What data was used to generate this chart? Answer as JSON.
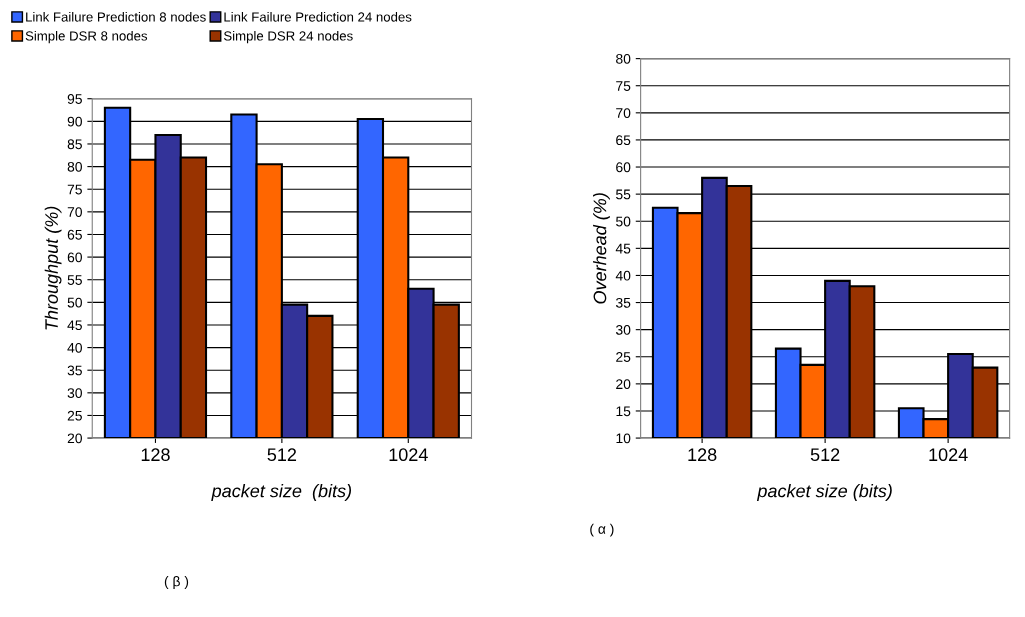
{
  "chart_data": [
    {
      "type": "bar",
      "categories": [
        "128",
        "512",
        "1024"
      ],
      "xlabel": "packet size  (bits)",
      "ylabel": "Throughput (%)",
      "ylim": [
        20,
        95
      ],
      "yticks": [
        20,
        25,
        30,
        35,
        40,
        45,
        50,
        55,
        60,
        65,
        70,
        75,
        80,
        85,
        90,
        95
      ],
      "grid": "y",
      "legend": "top left",
      "annotations": [
        "( β )"
      ],
      "series": [
        {
          "name": "Link Failure Prediction 8 nodes",
          "color": "#3366ff",
          "values": [
            93,
            91.5,
            90.5
          ]
        },
        {
          "name": "Simple DSR 8 nodes",
          "color": "#ff6600",
          "values": [
            81.5,
            80.5,
            82
          ]
        },
        {
          "name": "Link Failure Prediction 24 nodes",
          "color": "#333399",
          "values": [
            87,
            49.5,
            53
          ]
        },
        {
          "name": "Simple DSR 24 nodes",
          "color": "#993300",
          "values": [
            82,
            47,
            49.5
          ]
        }
      ]
    },
    {
      "type": "bar",
      "categories": [
        "128",
        "512",
        "1024"
      ],
      "xlabel": "packet size (bits)",
      "ylabel": "Overhead (%)",
      "ylim": [
        10,
        80
      ],
      "yticks": [
        10,
        15,
        20,
        25,
        30,
        35,
        40,
        45,
        50,
        55,
        60,
        65,
        70,
        75,
        80
      ],
      "grid": "y",
      "annotations": [
        "( α )"
      ],
      "series": [
        {
          "color": "#3366ff",
          "values": [
            52.5,
            26.5,
            15.5
          ]
        },
        {
          "color": "#ff6600",
          "values": [
            51.5,
            23.5,
            13.5
          ]
        },
        {
          "color": "#333399",
          "values": [
            58,
            39,
            25.5
          ]
        },
        {
          "color": "#993300",
          "values": [
            56.5,
            38,
            23
          ]
        }
      ]
    }
  ]
}
